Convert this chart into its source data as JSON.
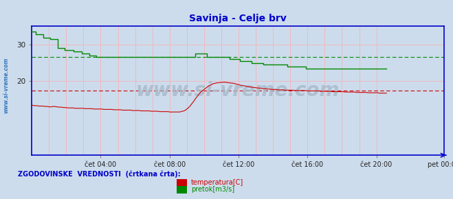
{
  "title": "Savinja - Celje brv",
  "title_color": "#0000cc",
  "bg_color": "#ccdcec",
  "plot_bg_color": "#ccdcec",
  "ylim": [
    0,
    35
  ],
  "xlim": [
    0,
    287
  ],
  "yticks": [
    20,
    30
  ],
  "xtick_labels": [
    "čet 04:00",
    "čet 08:00",
    "čet 12:00",
    "čet 16:00",
    "čet 20:00",
    "pet 00:00"
  ],
  "xtick_positions": [
    48,
    96,
    144,
    192,
    240,
    287
  ],
  "grid_color": "#ffaaaa",
  "border_color": "#0000cc",
  "watermark": "www.si-vreme.com",
  "watermark_color": "#aabbcc",
  "sidebar_text": "www.si-vreme.com",
  "sidebar_color": "#3377bb",
  "legend_label1": "temperatura[C]",
  "legend_label2": "pretok[m3/s]",
  "legend_text": "ZGODOVINSKE  VREDNOSTI  (črtkana črta):",
  "legend_color": "#0000cc",
  "temp_color": "#cc0000",
  "flow_color": "#008800",
  "temp_hist_value": 17.5,
  "flow_hist_value": 26.5,
  "temp_data": [
    13.5,
    13.5,
    13.4,
    13.4,
    13.4,
    13.3,
    13.3,
    13.3,
    13.3,
    13.2,
    13.2,
    13.2,
    13.1,
    13.1,
    13.1,
    13.2,
    13.2,
    13.1,
    13.1,
    13.0,
    13.0,
    13.0,
    12.9,
    12.9,
    12.9,
    12.8,
    12.8,
    12.8,
    12.8,
    12.8,
    12.7,
    12.7,
    12.7,
    12.7,
    12.7,
    12.7,
    12.7,
    12.6,
    12.6,
    12.6,
    12.6,
    12.6,
    12.6,
    12.5,
    12.5,
    12.5,
    12.5,
    12.5,
    12.5,
    12.5,
    12.4,
    12.4,
    12.4,
    12.4,
    12.4,
    12.4,
    12.4,
    12.3,
    12.3,
    12.3,
    12.3,
    12.3,
    12.3,
    12.2,
    12.2,
    12.2,
    12.2,
    12.2,
    12.2,
    12.2,
    12.1,
    12.1,
    12.1,
    12.1,
    12.1,
    12.1,
    12.0,
    12.0,
    12.0,
    12.0,
    12.0,
    12.0,
    12.0,
    11.9,
    11.9,
    11.9,
    11.9,
    11.9,
    11.9,
    11.8,
    11.8,
    11.8,
    11.8,
    11.8,
    11.8,
    11.8,
    11.7,
    11.7,
    11.7,
    11.7,
    11.7,
    11.7,
    11.7,
    11.7,
    11.8,
    11.9,
    12.0,
    12.2,
    12.5,
    12.8,
    13.2,
    13.7,
    14.2,
    14.7,
    15.3,
    15.8,
    16.3,
    16.8,
    17.2,
    17.5,
    17.8,
    18.1,
    18.4,
    18.7,
    18.9,
    19.1,
    19.3,
    19.4,
    19.5,
    19.6,
    19.6,
    19.7,
    19.7,
    19.7,
    19.8,
    19.7,
    19.7,
    19.6,
    19.6,
    19.5,
    19.5,
    19.4,
    19.3,
    19.2,
    19.1,
    19.0,
    18.9,
    18.8,
    18.8,
    18.7,
    18.6,
    18.5,
    18.5,
    18.4,
    18.4,
    18.3,
    18.3,
    18.2,
    18.2,
    18.1,
    18.1,
    18.0,
    18.0,
    18.0,
    17.9,
    17.9,
    17.9,
    17.8,
    17.8,
    17.8,
    17.8,
    17.7,
    17.7,
    17.7,
    17.7,
    17.7,
    17.6,
    17.6,
    17.6,
    17.6,
    17.6,
    17.6,
    17.6,
    17.5,
    17.5,
    17.5,
    17.5,
    17.5,
    17.5,
    17.5,
    17.5,
    17.5,
    17.4,
    17.4,
    17.4,
    17.4,
    17.4,
    17.4,
    17.4,
    17.4,
    17.4,
    17.3,
    17.3,
    17.3,
    17.3,
    17.3,
    17.3,
    17.3,
    17.3,
    17.2,
    17.2,
    17.2,
    17.2,
    17.2,
    17.2,
    17.2,
    17.2,
    17.2,
    17.1,
    17.1,
    17.1,
    17.1,
    17.1,
    17.1,
    17.1,
    17.1,
    17.0,
    17.0,
    17.0,
    17.0,
    17.0,
    17.0,
    17.0,
    17.0,
    16.9,
    16.9,
    16.9,
    16.9,
    16.9,
    16.9,
    16.9,
    16.9,
    16.8,
    16.8,
    16.8,
    16.8,
    16.8,
    16.8
  ],
  "flow_data": [
    33.5,
    33.5,
    33.5,
    32.8,
    32.8,
    32.8,
    32.8,
    32.8,
    31.8,
    31.8,
    31.8,
    31.8,
    31.8,
    31.5,
    31.5,
    31.5,
    31.5,
    31.5,
    29.0,
    29.0,
    29.0,
    29.0,
    29.0,
    28.5,
    28.5,
    28.5,
    28.5,
    28.5,
    28.5,
    28.0,
    28.0,
    28.0,
    28.0,
    28.0,
    28.0,
    27.5,
    27.5,
    27.5,
    27.5,
    27.5,
    27.0,
    27.0,
    27.0,
    27.0,
    27.0,
    26.5,
    26.5,
    26.5,
    26.5,
    26.5,
    26.5,
    26.5,
    26.5,
    26.5,
    26.5,
    26.5,
    26.5,
    26.5,
    26.5,
    26.5,
    26.5,
    26.5,
    26.5,
    26.5,
    26.5,
    26.5,
    26.5,
    26.5,
    26.5,
    26.5,
    26.5,
    26.5,
    26.5,
    26.5,
    26.5,
    26.5,
    26.5,
    26.5,
    26.5,
    26.5,
    26.5,
    26.5,
    26.5,
    26.5,
    26.5,
    26.5,
    26.5,
    26.5,
    26.5,
    26.5,
    26.5,
    26.5,
    26.5,
    26.5,
    26.5,
    26.5,
    26.5,
    26.5,
    26.5,
    26.5,
    26.5,
    26.5,
    26.5,
    26.5,
    26.5,
    26.5,
    26.5,
    26.5,
    26.5,
    26.5,
    26.5,
    26.5,
    26.5,
    26.5,
    27.5,
    27.5,
    27.5,
    27.5,
    27.5,
    27.5,
    27.5,
    27.5,
    26.5,
    26.5,
    26.5,
    26.5,
    26.5,
    26.5,
    26.5,
    26.5,
    26.5,
    26.5,
    26.5,
    26.5,
    26.5,
    26.5,
    26.5,
    26.5,
    26.0,
    26.0,
    26.0,
    26.0,
    26.0,
    26.0,
    26.0,
    25.5,
    25.5,
    25.5,
    25.5,
    25.5,
    25.5,
    25.5,
    25.5,
    25.0,
    25.0,
    25.0,
    25.0,
    25.0,
    25.0,
    25.0,
    25.0,
    24.5,
    24.5,
    24.5,
    24.5,
    24.5,
    24.5,
    24.5,
    24.5,
    24.5,
    24.5,
    24.5,
    24.5,
    24.5,
    24.5,
    24.5,
    24.5,
    24.5,
    24.0,
    24.0,
    24.0,
    24.0,
    24.0,
    24.0,
    24.0,
    24.0,
    24.0,
    24.0,
    24.0,
    24.0,
    24.0,
    23.5,
    23.5,
    23.5,
    23.5,
    23.5,
    23.5,
    23.5,
    23.5,
    23.5,
    23.5,
    23.5,
    23.5,
    23.5,
    23.5,
    23.5,
    23.5,
    23.5,
    23.5,
    23.5,
    23.5,
    23.5,
    23.5,
    23.5,
    23.5,
    23.5,
    23.5,
    23.5,
    23.5,
    23.5,
    23.5,
    23.5,
    23.5,
    23.5,
    23.5,
    23.5,
    23.5,
    23.5,
    23.5,
    23.5,
    23.5,
    23.5,
    23.5,
    23.5,
    23.5,
    23.5,
    23.5,
    23.5,
    23.5,
    23.5,
    23.5,
    23.5,
    23.5,
    23.5,
    23.5,
    23.5,
    23.5,
    23.5
  ]
}
